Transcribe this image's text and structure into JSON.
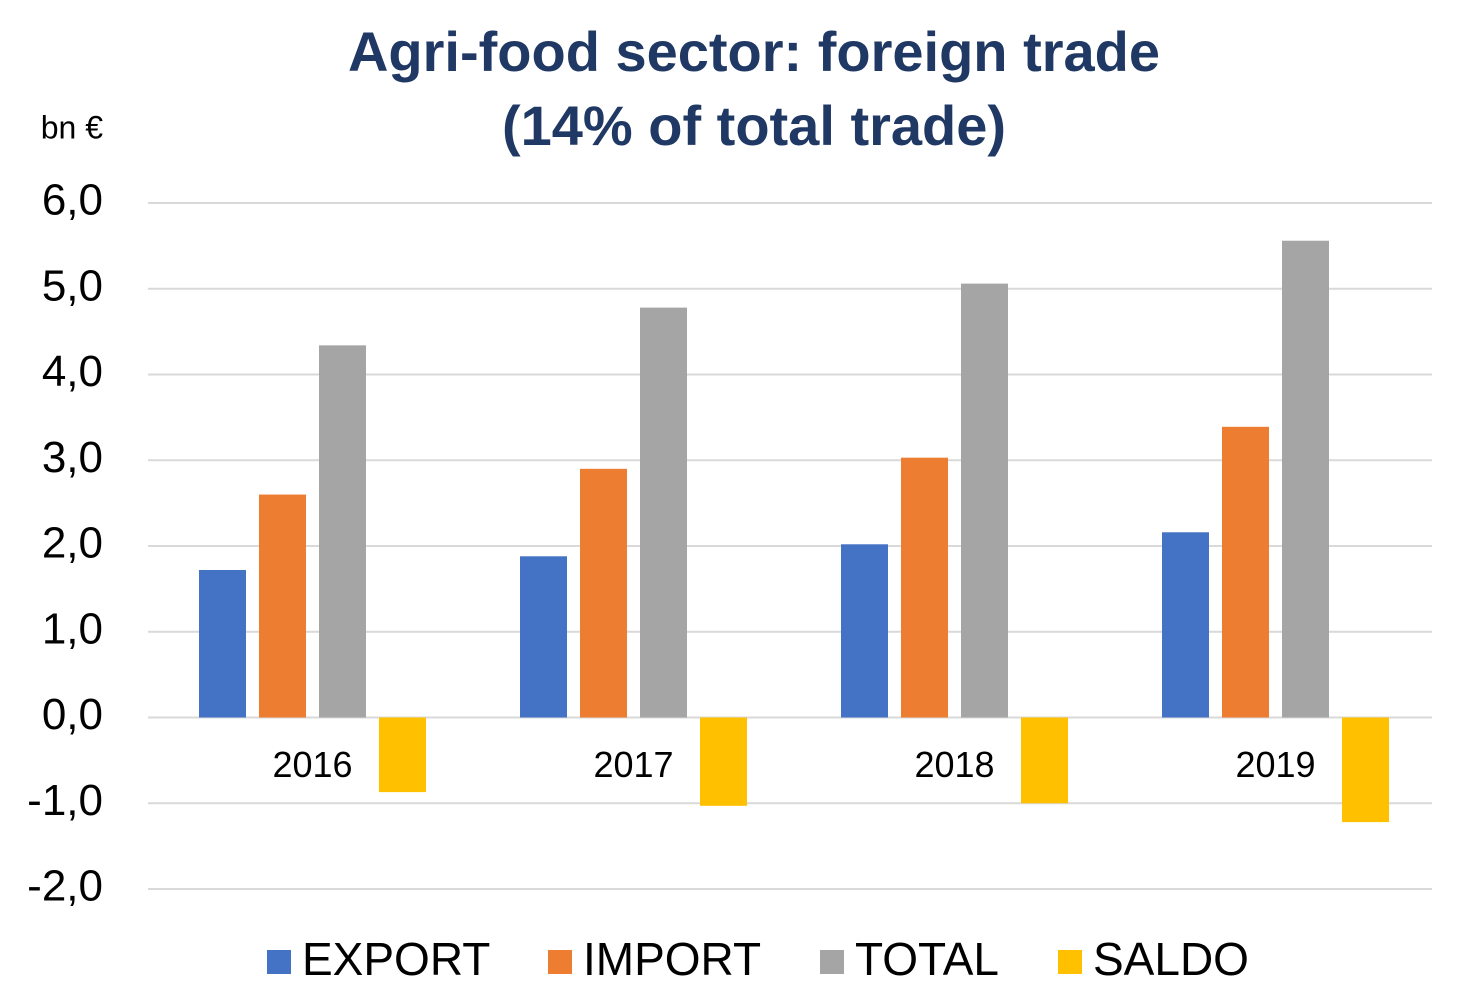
{
  "chart_data": {
    "type": "bar",
    "title": "Agri-food sector: foreign trade",
    "subtitle": "(14% of total trade)",
    "y_label": "bn €",
    "categories": [
      "2016",
      "2017",
      "2018",
      "2019"
    ],
    "series": [
      {
        "name": "EXPORT",
        "color": "#4472c4",
        "values": [
          1.72,
          1.88,
          2.02,
          2.16
        ]
      },
      {
        "name": "IMPORT",
        "color": "#ed7d31",
        "values": [
          2.6,
          2.9,
          3.03,
          3.39
        ]
      },
      {
        "name": "TOTAL",
        "color": "#a5a5a5",
        "values": [
          4.34,
          4.78,
          5.06,
          5.56
        ]
      },
      {
        "name": "SALDO",
        "color": "#ffc000",
        "values": [
          -0.87,
          -1.03,
          -1.0,
          -1.22
        ]
      }
    ],
    "ylim": [
      -2,
      6
    ],
    "yticks": [
      {
        "value": -2,
        "label": "-2,0"
      },
      {
        "value": -1,
        "label": "-1,0"
      },
      {
        "value": 0,
        "label": "0,0"
      },
      {
        "value": 1,
        "label": "1,0"
      },
      {
        "value": 2,
        "label": "2,0"
      },
      {
        "value": 3,
        "label": "3,0"
      },
      {
        "value": 4,
        "label": "4,0"
      },
      {
        "value": 5,
        "label": "5,0"
      },
      {
        "value": 6,
        "label": "6,0"
      }
    ],
    "grid": true,
    "legend": "bottom"
  }
}
